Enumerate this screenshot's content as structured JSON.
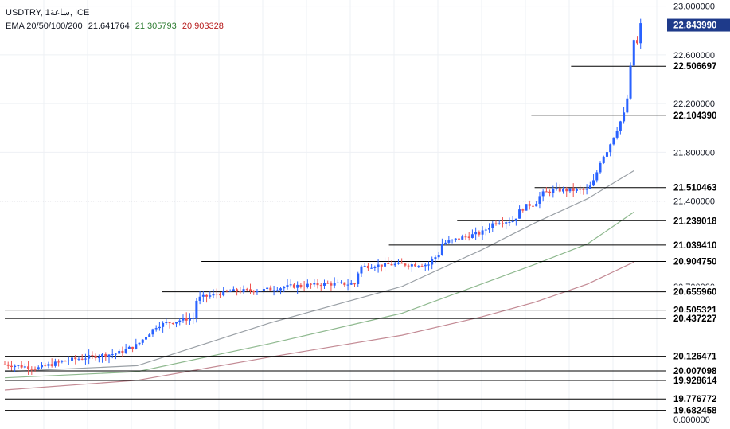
{
  "header": {
    "symbol_line": "USDTRY, 1ساعة, ICE",
    "ema_label": "EMA 20/50/100/200",
    "ema_values": [
      {
        "value": "21.641764",
        "color": "#131722"
      },
      {
        "value": "21.305793",
        "color": "#2e7d32"
      },
      {
        "value": "20.903328",
        "color": "#b71c1c"
      }
    ]
  },
  "colors": {
    "up_candle": "#2962ff",
    "down_candle": "#ef5350",
    "ema_20": "#9aa0a6",
    "ema_50": "#8fb98f",
    "ema_100": "#c38a94",
    "level_line": "#000000",
    "grid": "#eef0f4",
    "price_tag_bg": "#131722",
    "price_tag_text": "#ffffff"
  },
  "chart_data": {
    "type": "candlestick",
    "symbol": "USDTRY",
    "ylim": [
      19.53,
      23.05
    ],
    "y_ticks": [
      "23.000000",
      "22.600000",
      "22.200000",
      "21.800000",
      "21.400000"
    ],
    "partial_tick": "20.700000",
    "bottom_label": "0.000000",
    "current_price": "22.843990",
    "last_price_guide": 21.4,
    "levels": [
      {
        "value": 22.84399,
        "label": "22.843990",
        "start": 0.915,
        "highlight": true
      },
      {
        "value": 22.506697,
        "label": "22.506697",
        "start": 0.855
      },
      {
        "value": 22.10439,
        "label": "22.104390",
        "start": 0.795
      },
      {
        "value": 21.510463,
        "label": "21.510463",
        "start": 0.8
      },
      {
        "value": 21.239018,
        "label": "21.239018",
        "start": 0.683
      },
      {
        "value": 21.03941,
        "label": "21.039410",
        "start": 0.58
      },
      {
        "value": 20.90475,
        "label": "20.904750",
        "start": 0.297
      },
      {
        "value": 20.65596,
        "label": "20.655960",
        "start": 0.237
      },
      {
        "value": 20.505321,
        "label": "20.505321",
        "start": 0.0
      },
      {
        "value": 20.437227,
        "label": "20.437227",
        "start": 0.0
      },
      {
        "value": 20.126471,
        "label": "20.126471",
        "start": 0.0
      },
      {
        "value": 20.007098,
        "label": "20.007098",
        "start": 0.0
      },
      {
        "value": 19.928614,
        "label": "19.928614",
        "start": 0.0
      },
      {
        "value": 19.776772,
        "label": "19.776772",
        "start": 0.0
      },
      {
        "value": 19.682458,
        "label": "19.682458",
        "start": 0.0
      }
    ],
    "price_anchors": [
      [
        0.0,
        20.06
      ],
      [
        0.05,
        20.03
      ],
      [
        0.09,
        20.09
      ],
      [
        0.14,
        20.13
      ],
      [
        0.17,
        20.15
      ],
      [
        0.2,
        20.22
      ],
      [
        0.23,
        20.38
      ],
      [
        0.27,
        20.43
      ],
      [
        0.285,
        20.44
      ],
      [
        0.29,
        20.6
      ],
      [
        0.34,
        20.66
      ],
      [
        0.39,
        20.67
      ],
      [
        0.43,
        20.7
      ],
      [
        0.48,
        20.72
      ],
      [
        0.53,
        20.72
      ],
      [
        0.535,
        20.86
      ],
      [
        0.58,
        20.88
      ],
      [
        0.64,
        20.88
      ],
      [
        0.645,
        20.92
      ],
      [
        0.655,
        20.96
      ],
      [
        0.66,
        21.05
      ],
      [
        0.69,
        21.1
      ],
      [
        0.72,
        21.14
      ],
      [
        0.74,
        21.23
      ],
      [
        0.77,
        21.24
      ],
      [
        0.775,
        21.31
      ],
      [
        0.79,
        21.37
      ],
      [
        0.8,
        21.37
      ],
      [
        0.81,
        21.46
      ],
      [
        0.83,
        21.49
      ],
      [
        0.88,
        21.49
      ],
      [
        0.89,
        21.57
      ],
      [
        0.9,
        21.74
      ],
      [
        0.91,
        21.82
      ],
      [
        0.925,
        22.0
      ],
      [
        0.935,
        22.12
      ],
      [
        0.94,
        22.25
      ],
      [
        0.945,
        22.51
      ],
      [
        0.95,
        22.73
      ],
      [
        0.955,
        22.69
      ],
      [
        0.96,
        22.85
      ]
    ],
    "ema_20": {
      "color": "#9aa0a6",
      "points": [
        [
          0.0,
          20.0
        ],
        [
          0.2,
          20.05
        ],
        [
          0.4,
          20.4
        ],
        [
          0.6,
          20.7
        ],
        [
          0.72,
          21.0
        ],
        [
          0.8,
          21.22
        ],
        [
          0.88,
          21.42
        ],
        [
          0.95,
          21.65
        ]
      ]
    },
    "ema_50": {
      "color": "#8fb98f",
      "points": [
        [
          0.0,
          19.95
        ],
        [
          0.2,
          20.0
        ],
        [
          0.4,
          20.23
        ],
        [
          0.6,
          20.48
        ],
        [
          0.72,
          20.72
        ],
        [
          0.8,
          20.88
        ],
        [
          0.88,
          21.05
        ],
        [
          0.95,
          21.31
        ]
      ]
    },
    "ema_100": {
      "color": "#c38a94",
      "points": [
        [
          0.0,
          19.85
        ],
        [
          0.2,
          19.93
        ],
        [
          0.4,
          20.12
        ],
        [
          0.6,
          20.3
        ],
        [
          0.72,
          20.45
        ],
        [
          0.8,
          20.57
        ],
        [
          0.88,
          20.72
        ],
        [
          0.95,
          20.9
        ]
      ]
    }
  }
}
